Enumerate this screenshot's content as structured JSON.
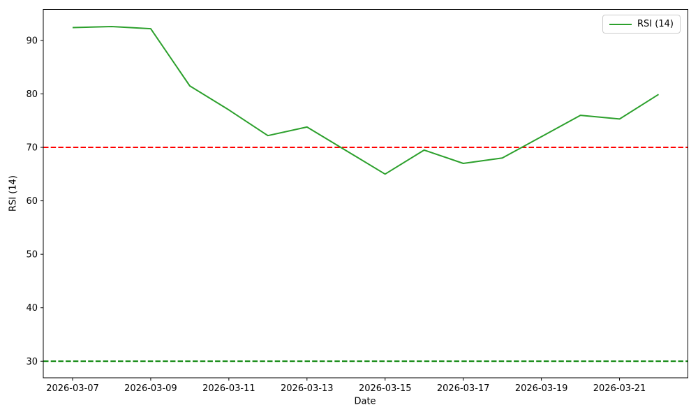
{
  "chart_data": {
    "type": "line",
    "xlabel": "Date",
    "ylabel": "RSI (14)",
    "x": [
      "2026-03-07",
      "2026-03-08",
      "2026-03-09",
      "2026-03-10",
      "2026-03-11",
      "2026-03-12",
      "2026-03-13",
      "2026-03-14",
      "2026-03-15",
      "2026-03-16",
      "2026-03-17",
      "2026-03-18",
      "2026-03-19",
      "2026-03-20",
      "2026-03-21",
      "2026-03-22"
    ],
    "series": [
      {
        "name": "RSI (14)",
        "color": "#2ca02c",
        "values": [
          92.4,
          92.6,
          92.2,
          81.5,
          77.0,
          72.2,
          73.8,
          69.4,
          65.0,
          69.5,
          67.0,
          68.0,
          72.0,
          76.0,
          75.3,
          79.9
        ]
      }
    ],
    "reference_lines": [
      {
        "name": "overbought-level",
        "value": 70,
        "color": "#ff0000",
        "style": "dashed"
      },
      {
        "name": "oversold-level",
        "value": 30,
        "color": "#008000",
        "style": "dashed"
      }
    ],
    "xticks": [
      "2026-03-07",
      "2026-03-09",
      "2026-03-11",
      "2026-03-13",
      "2026-03-15",
      "2026-03-17",
      "2026-03-19",
      "2026-03-21"
    ],
    "yticks": [
      30,
      40,
      50,
      60,
      70,
      80,
      90
    ],
    "ylim": [
      26.9,
      95.8
    ],
    "xlim_days": [
      -0.75,
      15.75
    ],
    "grid": false,
    "legend": {
      "position": "upper-right",
      "entries": [
        {
          "label": "RSI (14)",
          "color": "#2ca02c"
        }
      ]
    }
  },
  "colors": {
    "background": "#ffffff",
    "axis": "#000000",
    "text": "#000000"
  }
}
